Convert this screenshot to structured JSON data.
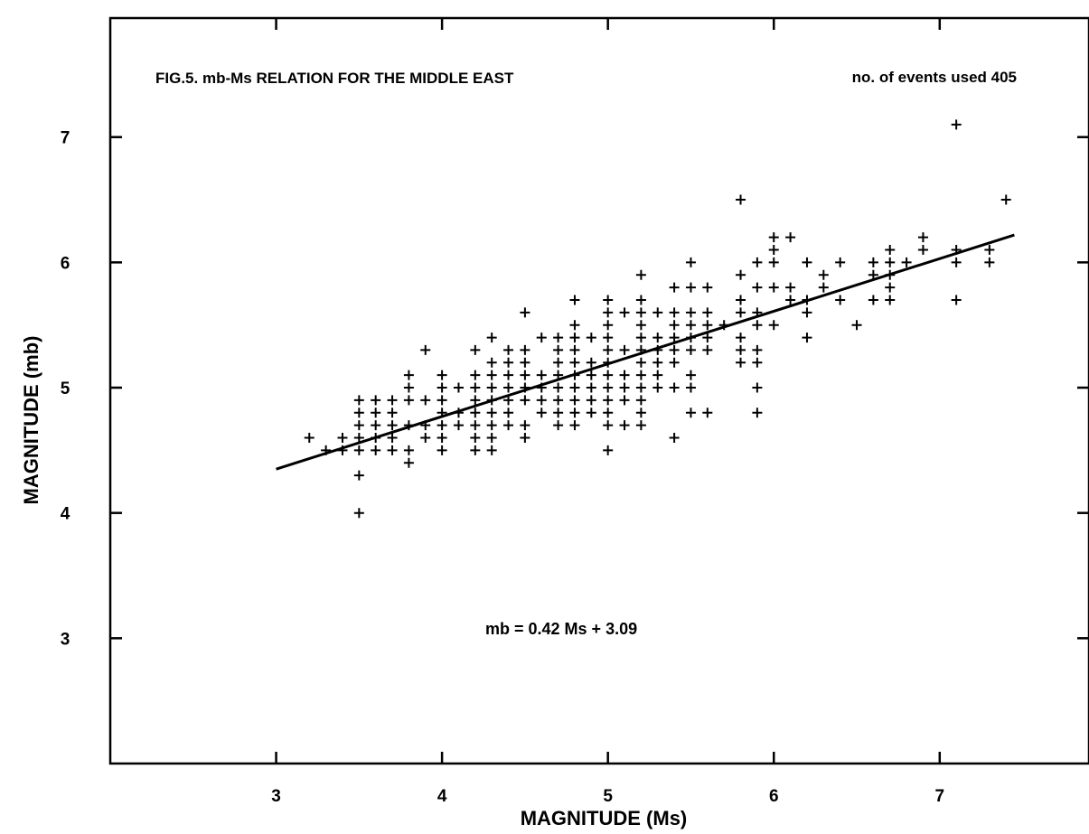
{
  "chart_data": {
    "type": "scatter",
    "title": "FIG.5. mb-Ms RELATION FOR THE MIDDLE EAST",
    "events_note": "no. of events used  405",
    "equation": "mb = 0.42 Ms + 3.09",
    "xlabel": "MAGNITUDE   (Ms)",
    "ylabel": "MAGNITUDE   (mb)",
    "xlim": [
      2.0,
      7.9
    ],
    "ylim": [
      2.0,
      7.95
    ],
    "x_ticks": [
      3,
      4,
      5,
      6,
      7
    ],
    "x_tick_labels": [
      "3",
      "4",
      "5",
      "6",
      "7"
    ],
    "y_ticks": [
      3,
      4,
      5,
      6,
      7
    ],
    "y_tick_labels": [
      "3",
      "4",
      "5",
      "6",
      "7"
    ],
    "grid": false,
    "fit_line": {
      "slope": 0.42,
      "intercept": 3.09,
      "x_range": [
        3.0,
        7.45
      ]
    },
    "series": [
      {
        "marker": "+",
        "points": [
          [
            3.2,
            4.6
          ],
          [
            3.3,
            4.5
          ],
          [
            3.4,
            4.5
          ],
          [
            3.4,
            4.6
          ],
          [
            3.5,
            4.0
          ],
          [
            3.5,
            4.3
          ],
          [
            3.5,
            4.5
          ],
          [
            3.5,
            4.6
          ],
          [
            3.5,
            4.7
          ],
          [
            3.5,
            4.8
          ],
          [
            3.5,
            4.9
          ],
          [
            3.6,
            4.5
          ],
          [
            3.6,
            4.6
          ],
          [
            3.6,
            4.7
          ],
          [
            3.6,
            4.8
          ],
          [
            3.6,
            4.9
          ],
          [
            3.7,
            4.5
          ],
          [
            3.7,
            4.6
          ],
          [
            3.7,
            4.7
          ],
          [
            3.7,
            4.8
          ],
          [
            3.7,
            4.9
          ],
          [
            3.8,
            4.4
          ],
          [
            3.8,
            4.5
          ],
          [
            3.8,
            4.7
          ],
          [
            3.8,
            4.9
          ],
          [
            3.8,
            5.0
          ],
          [
            3.8,
            5.1
          ],
          [
            3.9,
            4.6
          ],
          [
            3.9,
            4.7
          ],
          [
            3.9,
            4.9
          ],
          [
            3.9,
            5.3
          ],
          [
            4.0,
            4.5
          ],
          [
            4.0,
            4.6
          ],
          [
            4.0,
            4.7
          ],
          [
            4.0,
            4.8
          ],
          [
            4.0,
            4.9
          ],
          [
            4.0,
            5.0
          ],
          [
            4.0,
            5.1
          ],
          [
            4.1,
            4.7
          ],
          [
            4.1,
            4.8
          ],
          [
            4.1,
            5.0
          ],
          [
            4.2,
            4.5
          ],
          [
            4.2,
            4.6
          ],
          [
            4.2,
            4.7
          ],
          [
            4.2,
            4.8
          ],
          [
            4.2,
            4.9
          ],
          [
            4.2,
            5.0
          ],
          [
            4.2,
            5.1
          ],
          [
            4.2,
            5.3
          ],
          [
            4.3,
            4.5
          ],
          [
            4.3,
            4.6
          ],
          [
            4.3,
            4.7
          ],
          [
            4.3,
            4.8
          ],
          [
            4.3,
            4.9
          ],
          [
            4.3,
            5.0
          ],
          [
            4.3,
            5.1
          ],
          [
            4.3,
            5.2
          ],
          [
            4.3,
            5.4
          ],
          [
            4.4,
            4.7
          ],
          [
            4.4,
            4.8
          ],
          [
            4.4,
            4.9
          ],
          [
            4.4,
            5.0
          ],
          [
            4.4,
            5.1
          ],
          [
            4.4,
            5.2
          ],
          [
            4.4,
            5.3
          ],
          [
            4.5,
            4.6
          ],
          [
            4.5,
            4.7
          ],
          [
            4.5,
            4.9
          ],
          [
            4.5,
            5.0
          ],
          [
            4.5,
            5.1
          ],
          [
            4.5,
            5.2
          ],
          [
            4.5,
            5.3
          ],
          [
            4.5,
            5.6
          ],
          [
            4.6,
            4.8
          ],
          [
            4.6,
            4.9
          ],
          [
            4.6,
            5.0
          ],
          [
            4.6,
            5.1
          ],
          [
            4.6,
            5.4
          ],
          [
            4.7,
            4.7
          ],
          [
            4.7,
            4.8
          ],
          [
            4.7,
            4.9
          ],
          [
            4.7,
            5.0
          ],
          [
            4.7,
            5.1
          ],
          [
            4.7,
            5.2
          ],
          [
            4.7,
            5.3
          ],
          [
            4.7,
            5.4
          ],
          [
            4.8,
            4.7
          ],
          [
            4.8,
            4.8
          ],
          [
            4.8,
            4.9
          ],
          [
            4.8,
            5.0
          ],
          [
            4.8,
            5.1
          ],
          [
            4.8,
            5.2
          ],
          [
            4.8,
            5.3
          ],
          [
            4.8,
            5.4
          ],
          [
            4.8,
            5.5
          ],
          [
            4.8,
            5.7
          ],
          [
            4.9,
            4.8
          ],
          [
            4.9,
            4.9
          ],
          [
            4.9,
            5.0
          ],
          [
            4.9,
            5.1
          ],
          [
            4.9,
            5.2
          ],
          [
            4.9,
            5.4
          ],
          [
            5.0,
            4.5
          ],
          [
            5.0,
            4.7
          ],
          [
            5.0,
            4.8
          ],
          [
            5.0,
            4.9
          ],
          [
            5.0,
            5.0
          ],
          [
            5.0,
            5.1
          ],
          [
            5.0,
            5.2
          ],
          [
            5.0,
            5.3
          ],
          [
            5.0,
            5.4
          ],
          [
            5.0,
            5.5
          ],
          [
            5.0,
            5.6
          ],
          [
            5.0,
            5.7
          ],
          [
            5.1,
            4.7
          ],
          [
            5.1,
            4.9
          ],
          [
            5.1,
            5.0
          ],
          [
            5.1,
            5.1
          ],
          [
            5.1,
            5.3
          ],
          [
            5.1,
            5.6
          ],
          [
            5.2,
            4.7
          ],
          [
            5.2,
            4.8
          ],
          [
            5.2,
            4.9
          ],
          [
            5.2,
            5.0
          ],
          [
            5.2,
            5.1
          ],
          [
            5.2,
            5.2
          ],
          [
            5.2,
            5.3
          ],
          [
            5.2,
            5.4
          ],
          [
            5.2,
            5.5
          ],
          [
            5.2,
            5.6
          ],
          [
            5.2,
            5.7
          ],
          [
            5.2,
            5.9
          ],
          [
            5.3,
            5.0
          ],
          [
            5.3,
            5.1
          ],
          [
            5.3,
            5.2
          ],
          [
            5.3,
            5.3
          ],
          [
            5.3,
            5.4
          ],
          [
            5.3,
            5.6
          ],
          [
            5.4,
            4.6
          ],
          [
            5.4,
            5.0
          ],
          [
            5.4,
            5.2
          ],
          [
            5.4,
            5.3
          ],
          [
            5.4,
            5.4
          ],
          [
            5.4,
            5.5
          ],
          [
            5.4,
            5.6
          ],
          [
            5.4,
            5.8
          ],
          [
            5.5,
            4.8
          ],
          [
            5.5,
            5.0
          ],
          [
            5.5,
            5.1
          ],
          [
            5.5,
            5.3
          ],
          [
            5.5,
            5.4
          ],
          [
            5.5,
            5.5
          ],
          [
            5.5,
            5.6
          ],
          [
            5.5,
            5.8
          ],
          [
            5.5,
            6.0
          ],
          [
            5.6,
            4.8
          ],
          [
            5.6,
            5.3
          ],
          [
            5.6,
            5.4
          ],
          [
            5.6,
            5.5
          ],
          [
            5.6,
            5.6
          ],
          [
            5.6,
            5.8
          ],
          [
            5.7,
            5.5
          ],
          [
            5.8,
            5.2
          ],
          [
            5.8,
            5.3
          ],
          [
            5.8,
            5.4
          ],
          [
            5.8,
            5.6
          ],
          [
            5.8,
            5.7
          ],
          [
            5.8,
            5.9
          ],
          [
            5.8,
            6.5
          ],
          [
            5.9,
            4.8
          ],
          [
            5.9,
            5.0
          ],
          [
            5.9,
            5.2
          ],
          [
            5.9,
            5.3
          ],
          [
            5.9,
            5.5
          ],
          [
            5.9,
            5.6
          ],
          [
            5.9,
            5.8
          ],
          [
            5.9,
            6.0
          ],
          [
            6.0,
            5.5
          ],
          [
            6.0,
            5.8
          ],
          [
            6.0,
            6.0
          ],
          [
            6.0,
            6.1
          ],
          [
            6.0,
            6.2
          ],
          [
            6.1,
            5.7
          ],
          [
            6.1,
            5.8
          ],
          [
            6.1,
            6.2
          ],
          [
            6.2,
            5.4
          ],
          [
            6.2,
            5.6
          ],
          [
            6.2,
            5.7
          ],
          [
            6.2,
            6.0
          ],
          [
            6.3,
            5.8
          ],
          [
            6.3,
            5.9
          ],
          [
            6.4,
            5.7
          ],
          [
            6.4,
            6.0
          ],
          [
            6.5,
            5.5
          ],
          [
            6.6,
            5.7
          ],
          [
            6.6,
            5.9
          ],
          [
            6.6,
            6.0
          ],
          [
            6.7,
            5.7
          ],
          [
            6.7,
            5.8
          ],
          [
            6.7,
            5.9
          ],
          [
            6.7,
            6.0
          ],
          [
            6.7,
            6.1
          ],
          [
            6.8,
            6.0
          ],
          [
            6.9,
            6.1
          ],
          [
            6.9,
            6.2
          ],
          [
            7.1,
            5.7
          ],
          [
            7.1,
            6.0
          ],
          [
            7.1,
            6.1
          ],
          [
            7.1,
            7.1
          ],
          [
            7.3,
            6.0
          ],
          [
            7.3,
            6.1
          ],
          [
            7.4,
            6.5
          ]
        ]
      }
    ]
  }
}
